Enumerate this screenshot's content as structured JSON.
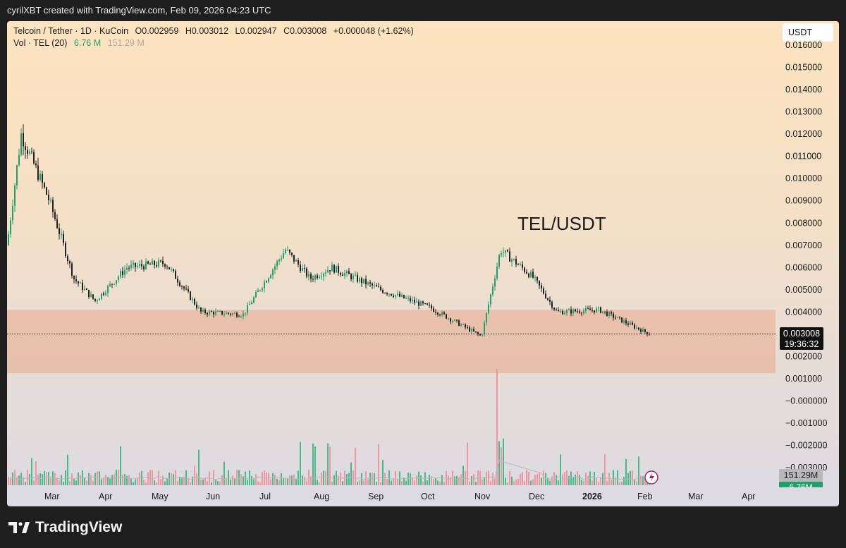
{
  "header": {
    "caption": "cyrilXBT created with TradingView.com, Feb 09, 2026 04:23 UTC"
  },
  "legend": {
    "symbol": "Telcoin / Tether · 1D · KuCoin",
    "open": "O0.002959",
    "high": "H0.003012",
    "low": "L0.002947",
    "close": "C0.003008",
    "change": "+0.000048 (+1.62%)",
    "vol_label": "Vol · TEL (20)",
    "vol_value": "6.76 M",
    "vol_ma": "151.29 M"
  },
  "currency_badge": "USDT",
  "last_price": {
    "price": "0.003008",
    "countdown": "19:36:32"
  },
  "volume_tags": {
    "ma": "151.29M",
    "vol": "6.76M"
  },
  "annotation": "TEL/USDT",
  "footer": {
    "brand": "TradingView"
  },
  "colors": {
    "up": "#22a06b",
    "down": "#222222",
    "zone": "#e8aa8c",
    "vol_up": "#2bb57a",
    "vol_down": "#f28a95"
  },
  "chart_data": {
    "type": "candlestick",
    "symbol": "TEL/USDT",
    "interval": "1D",
    "y_axis": {
      "position": "right",
      "ticks": [
        "0.016000",
        "0.015000",
        "0.014000",
        "0.013000",
        "0.012000",
        "0.011000",
        "0.010000",
        "0.009000",
        "0.008000",
        "0.007000",
        "0.006000",
        "0.005000",
        "0.004000",
        "0.003000",
        "0.002000",
        "0.001000",
        "−0.000000",
        "−0.001000",
        "−0.002000",
        "−0.003000"
      ],
      "range": [
        -0.0032,
        0.0162
      ]
    },
    "x_axis": {
      "ticks": [
        "Mar",
        "Apr",
        "May",
        "Jun",
        "Jul",
        "Aug",
        "Sep",
        "Oct",
        "Nov",
        "Dec",
        "2026",
        "Feb",
        "Mar",
        "Apr"
      ],
      "bold": [
        "2026"
      ]
    },
    "support_zone": [
      0.00125,
      0.0041
    ],
    "last_price_line": 0.003008,
    "series_close_approx": [
      {
        "date": "Feb",
        "close": 0.007
      },
      {
        "date": "late Feb",
        "close": 0.012
      },
      {
        "date": "Mar",
        "close": 0.009
      },
      {
        "date": "mid Mar",
        "close": 0.0055
      },
      {
        "date": "Apr",
        "close": 0.0045
      },
      {
        "date": "late Apr",
        "close": 0.006
      },
      {
        "date": "May",
        "close": 0.0062
      },
      {
        "date": "Jun",
        "close": 0.004
      },
      {
        "date": "Jul",
        "close": 0.0039
      },
      {
        "date": "late Jul",
        "close": 0.0068
      },
      {
        "date": "Aug",
        "close": 0.0055
      },
      {
        "date": "mid Aug",
        "close": 0.006
      },
      {
        "date": "Sep",
        "close": 0.005
      },
      {
        "date": "Oct",
        "close": 0.0042
      },
      {
        "date": "early Nov",
        "close": 0.0029
      },
      {
        "date": "mid Nov",
        "close": 0.0068
      },
      {
        "date": "Dec",
        "close": 0.0056
      },
      {
        "date": "late Dec",
        "close": 0.004
      },
      {
        "date": "Jan",
        "close": 0.0041
      },
      {
        "date": "Feb",
        "close": 0.003
      }
    ],
    "volume": {
      "ma_label": "151.29M",
      "last": "6.76M",
      "peak_month": "Nov"
    }
  }
}
